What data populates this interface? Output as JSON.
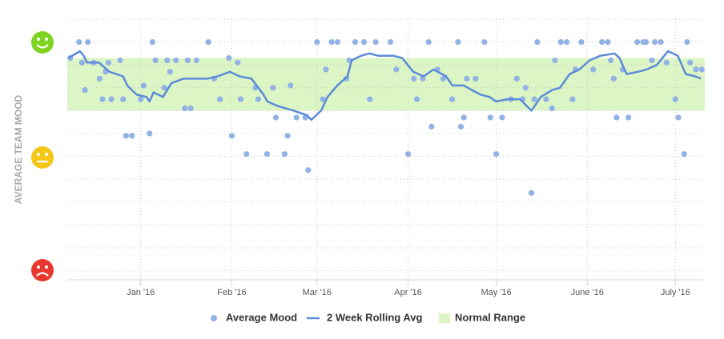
{
  "chart_data": {
    "type": "combo",
    "y_axis_label": "AVERAGE TEAM MOOD",
    "xlim": [
      -25,
      192
    ],
    "xticks": [
      {
        "value": 0,
        "label": "Jan '16"
      },
      {
        "value": 31,
        "label": "Feb '16"
      },
      {
        "value": 60,
        "label": "Mar '16"
      },
      {
        "value": 91,
        "label": "Apr '16"
      },
      {
        "value": 121,
        "label": "May '16"
      },
      {
        "value": 152,
        "label": "June '16"
      },
      {
        "value": 182,
        "label": "July '16"
      }
    ],
    "ylim": [
      -0.4,
      11
    ],
    "yticks": [
      0,
      1,
      2,
      3,
      4,
      5,
      6,
      7,
      8,
      9,
      10,
      11
    ],
    "grid": true,
    "band": {
      "name": "Normal Range",
      "color": "#dcf5c4",
      "range": [
        7.0,
        9.3
      ]
    },
    "series": [
      {
        "name": "Average Mood",
        "type": "scatter",
        "color": "#92b2e6",
        "x": [
          -24,
          -21,
          -20,
          -19,
          -18,
          -16,
          -14,
          -13,
          -12,
          -11,
          -10,
          -7,
          -6,
          -5,
          -3,
          0,
          1,
          3,
          4,
          5,
          8,
          9,
          10,
          12,
          15,
          16,
          17,
          19,
          23,
          25,
          27,
          30,
          31,
          33,
          34,
          36,
          39,
          40,
          43,
          45,
          46,
          49,
          50,
          51,
          53,
          56,
          57,
          60,
          62,
          63,
          65,
          67,
          70,
          71,
          73,
          76,
          78,
          80,
          85,
          87,
          91,
          93,
          94,
          96,
          98,
          99,
          101,
          103,
          106,
          108,
          109,
          110,
          111,
          114,
          117,
          119,
          121,
          123,
          126,
          128,
          130,
          131,
          133,
          134,
          135,
          138,
          140,
          141,
          143,
          145,
          147,
          148,
          150,
          154,
          157,
          159,
          160,
          161,
          162,
          164,
          166,
          169,
          171,
          172,
          174,
          175,
          177,
          179,
          182,
          183,
          185,
          186,
          187,
          189,
          191
        ],
        "values": [
          9.3,
          10.0,
          9.1,
          7.9,
          10.0,
          9.1,
          8.4,
          7.5,
          8.7,
          9.1,
          7.5,
          9.2,
          7.5,
          5.9,
          5.9,
          7.5,
          8.1,
          6.0,
          10.0,
          9.2,
          8.0,
          9.2,
          8.7,
          9.2,
          7.1,
          9.2,
          7.1,
          9.2,
          10.0,
          8.4,
          7.5,
          9.3,
          5.9,
          9.1,
          7.5,
          5.1,
          8.0,
          7.5,
          5.1,
          8.0,
          6.7,
          5.1,
          5.9,
          8.1,
          6.7,
          6.7,
          4.4,
          10.0,
          7.5,
          8.8,
          10.0,
          10.0,
          8.4,
          9.2,
          10.0,
          10.0,
          7.5,
          10.0,
          10.0,
          8.8,
          5.1,
          8.4,
          7.5,
          8.4,
          10.0,
          6.3,
          8.8,
          8.4,
          7.5,
          10.0,
          6.3,
          6.7,
          8.4,
          8.4,
          10.0,
          6.7,
          5.1,
          6.7,
          7.5,
          8.4,
          7.5,
          8.0,
          3.4,
          7.5,
          10.0,
          7.5,
          7.1,
          9.2,
          10.0,
          10.0,
          7.5,
          8.8,
          10.0,
          8.8,
          10.0,
          10.0,
          9.2,
          8.4,
          6.7,
          8.8,
          6.7,
          10.0,
          10.0,
          10.0,
          9.2,
          10.0,
          10.0,
          9.1,
          7.5,
          6.7,
          5.1,
          10.0,
          9.1,
          8.8,
          8.8
        ]
      },
      {
        "name": "2 Week Rolling Avg",
        "type": "line",
        "color": "#5b8bd9",
        "x": [
          -24.6,
          -20.7,
          -19.4,
          -18.3,
          -14.2,
          -10.6,
          -6,
          -4.6,
          -1.4,
          1.9,
          3,
          4.4,
          7.6,
          10.4,
          14.5,
          18.8,
          22.6,
          26.2,
          30.3,
          33.6,
          37.7,
          41.8,
          43.1,
          46.7,
          52.1,
          56.5,
          58.1,
          61.4,
          63.6,
          66.9,
          70.4,
          71.8,
          75,
          77.8,
          81,
          86,
          89,
          92.8,
          96.3,
          99.6,
          104,
          106.1,
          110,
          112.7,
          115.7,
          118.7,
          120.9,
          125,
          129.1,
          133,
          136.2,
          140,
          142.7,
          146,
          149.3,
          152.8,
          156.4,
          161.3,
          163,
          165.4,
          169.2,
          172.2,
          175.7,
          179.5,
          182.8,
          185.5,
          188.8,
          190.7
        ],
        "values": [
          9.3,
          9.6,
          9.4,
          9.1,
          9.1,
          8.7,
          8.5,
          8.1,
          7.7,
          7.6,
          7.4,
          7.8,
          7.6,
          8.2,
          8.4,
          8.4,
          8.4,
          8.5,
          8.7,
          8.5,
          8.4,
          7.7,
          7.4,
          7.2,
          7.0,
          6.8,
          6.6,
          7.0,
          7.6,
          8.1,
          8.5,
          9.2,
          9.4,
          9.5,
          9.4,
          9.4,
          9.3,
          8.7,
          8.5,
          8.8,
          8.5,
          8.1,
          8.1,
          7.9,
          7.7,
          7.6,
          7.4,
          7.5,
          7.5,
          7.0,
          7.6,
          7.9,
          8.0,
          8.6,
          8.8,
          9.2,
          9.4,
          9.5,
          9.3,
          8.6,
          8.7,
          8.8,
          9.0,
          9.6,
          9.4,
          8.6,
          8.5,
          8.4
        ]
      }
    ]
  }
}
